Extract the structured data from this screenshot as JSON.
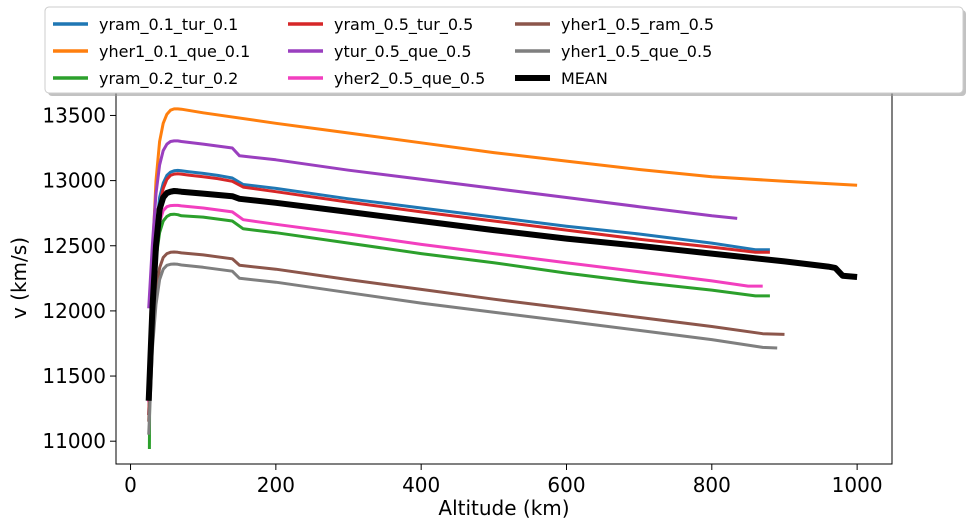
{
  "chart_data": {
    "type": "line",
    "title": "",
    "xlabel": "Altitude (km)",
    "ylabel": "v (km/s)",
    "xlim": [
      -20,
      1048
    ],
    "ylim": [
      10825,
      13680
    ],
    "xticks": [
      0,
      200,
      400,
      600,
      800,
      1000
    ],
    "yticks": [
      11000,
      11500,
      12000,
      12500,
      13000,
      13500
    ],
    "legend_position": "top",
    "grid": false,
    "series": [
      {
        "name": "yram_0.1_tur_0.1",
        "color": "#1f77b4",
        "width": 3,
        "x": [
          25,
          30,
          35,
          40,
          45,
          50,
          55,
          60,
          65,
          70,
          80,
          100,
          120,
          140,
          155,
          200,
          300,
          400,
          500,
          600,
          700,
          800,
          860,
          880
        ],
        "y": [
          11200,
          12000,
          12600,
          12870,
          12980,
          13040,
          13065,
          13075,
          13078,
          13075,
          13068,
          13055,
          13040,
          13020,
          12970,
          12940,
          12860,
          12790,
          12720,
          12650,
          12590,
          12520,
          12470,
          12470
        ]
      },
      {
        "name": "yher1_0.1_que_0.1",
        "color": "#ff7f0e",
        "width": 3,
        "x": [
          25,
          30,
          35,
          40,
          45,
          50,
          55,
          60,
          65,
          70,
          100,
          200,
          300,
          400,
          500,
          600,
          700,
          800,
          900,
          1000
        ],
        "y": [
          11300,
          12400,
          13000,
          13300,
          13440,
          13510,
          13540,
          13550,
          13550,
          13548,
          13520,
          13440,
          13365,
          13290,
          13215,
          13150,
          13085,
          13030,
          12995,
          12965
        ]
      },
      {
        "name": "yram_0.2_tur_0.2",
        "color": "#2ca02c",
        "width": 3,
        "x": [
          26,
          26.5,
          30,
          35,
          40,
          45,
          50,
          55,
          60,
          65,
          70,
          100,
          140,
          155,
          200,
          300,
          400,
          500,
          600,
          700,
          800,
          860,
          880
        ],
        "y": [
          10940,
          11600,
          12000,
          12400,
          12600,
          12690,
          12725,
          12740,
          12742,
          12738,
          12730,
          12720,
          12690,
          12630,
          12600,
          12520,
          12440,
          12370,
          12290,
          12220,
          12160,
          12115,
          12115
        ]
      },
      {
        "name": "yram_0.5_tur_0.5",
        "color": "#d62728",
        "width": 3,
        "x": [
          25,
          30,
          35,
          40,
          45,
          50,
          55,
          60,
          65,
          70,
          80,
          100,
          120,
          140,
          155,
          200,
          300,
          400,
          500,
          600,
          700,
          800,
          860,
          880
        ],
        "y": [
          11200,
          11950,
          12500,
          12800,
          12940,
          13010,
          13040,
          13050,
          13052,
          13050,
          13042,
          13030,
          13015,
          12995,
          12950,
          12915,
          12835,
          12760,
          12690,
          12620,
          12550,
          12490,
          12450,
          12450
        ]
      },
      {
        "name": "ytur_0.5_que_0.5",
        "color": "#9a3fbf",
        "width": 3,
        "x": [
          25,
          30,
          35,
          40,
          45,
          50,
          55,
          60,
          65,
          70,
          100,
          140,
          150,
          200,
          300,
          400,
          500,
          600,
          700,
          800,
          835
        ],
        "y": [
          12020,
          12500,
          12900,
          13120,
          13230,
          13280,
          13300,
          13305,
          13305,
          13300,
          13280,
          13250,
          13190,
          13160,
          13080,
          13010,
          12940,
          12870,
          12800,
          12730,
          12710
        ]
      },
      {
        "name": "yher2_0.5_que_0.5",
        "color": "#f23fbf",
        "width": 3,
        "x": [
          25,
          30,
          35,
          40,
          45,
          50,
          55,
          60,
          65,
          70,
          100,
          140,
          155,
          200,
          300,
          400,
          500,
          600,
          700,
          800,
          850,
          870
        ],
        "y": [
          11300,
          12000,
          12450,
          12680,
          12770,
          12800,
          12808,
          12810,
          12810,
          12806,
          12790,
          12760,
          12700,
          12665,
          12590,
          12510,
          12440,
          12370,
          12300,
          12230,
          12190,
          12190
        ]
      },
      {
        "name": "yher1_0.5_ram_0.5",
        "color": "#8c564b",
        "width": 3,
        "x": [
          25,
          30,
          35,
          40,
          45,
          50,
          55,
          60,
          65,
          70,
          100,
          140,
          150,
          200,
          300,
          400,
          500,
          600,
          700,
          800,
          870,
          900
        ],
        "y": [
          11150,
          11800,
          12150,
          12330,
          12410,
          12440,
          12450,
          12452,
          12450,
          12445,
          12430,
          12400,
          12350,
          12320,
          12240,
          12165,
          12090,
          12020,
          11950,
          11880,
          11825,
          11820
        ]
      },
      {
        "name": "yher1_0.5_que_0.5",
        "color": "#7f7f7f",
        "width": 3,
        "x": [
          25,
          30,
          35,
          40,
          45,
          50,
          55,
          60,
          65,
          70,
          100,
          140,
          150,
          200,
          300,
          400,
          500,
          600,
          700,
          800,
          870,
          890
        ],
        "y": [
          11050,
          11700,
          12050,
          12240,
          12320,
          12350,
          12358,
          12360,
          12358,
          12352,
          12335,
          12305,
          12250,
          12220,
          12140,
          12060,
          11990,
          11920,
          11850,
          11780,
          11720,
          11715
        ]
      },
      {
        "name": "MEAN",
        "color": "#000000",
        "width": 6,
        "x": [
          25,
          30,
          35,
          40,
          45,
          50,
          55,
          60,
          65,
          70,
          100,
          140,
          150,
          200,
          300,
          400,
          500,
          600,
          700,
          800,
          900,
          960,
          970,
          980,
          1000
        ],
        "y": [
          11310,
          12000,
          12500,
          12780,
          12870,
          12905,
          12915,
          12920,
          12918,
          12915,
          12900,
          12880,
          12860,
          12830,
          12760,
          12690,
          12620,
          12555,
          12500,
          12440,
          12380,
          12340,
          12330,
          12270,
          12260
        ]
      }
    ]
  }
}
